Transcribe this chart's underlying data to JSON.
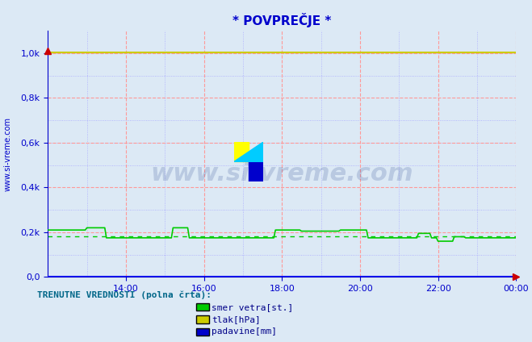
{
  "title": "* POVPREČJE *",
  "title_color": "#0000cc",
  "bg_color": "#dce9f5",
  "plot_bg_color": "#dce9f5",
  "grid_color_major": "#ff9999",
  "grid_color_minor": "#aaaaff",
  "x_tick_labels": [
    "14:00",
    "16:00",
    "18:00",
    "20:00",
    "22:00",
    "00:00"
  ],
  "x_tick_positions": [
    2,
    4,
    6,
    8,
    10,
    12
  ],
  "ylim": [
    0,
    1.1
  ],
  "ytick_labels": [
    "0,0",
    "0,2k",
    "0,4k",
    "0,6k",
    "0,8k",
    "1,0k"
  ],
  "axis_color": "#0000cc",
  "tick_color": "#0000cc",
  "arrow_color": "#cc0000",
  "line_green_color": "#00cc00",
  "line_yellow_color": "#cccc00",
  "line_blue_color": "#0000ff",
  "watermark_text": "www.si-vreme.com",
  "watermark_color": "#1a3a8a",
  "watermark_alpha": 0.18,
  "bottom_label": "TRENUTNE VREDNOSTI (polna črta):",
  "legend_entries": [
    {
      "label": "smer vetra[st.]",
      "color": "#00cc00"
    },
    {
      "label": "tlak[hPa]",
      "color": "#cccc00"
    },
    {
      "label": "padavine[mm]",
      "color": "#0000cc"
    }
  ],
  "n_points": 289
}
